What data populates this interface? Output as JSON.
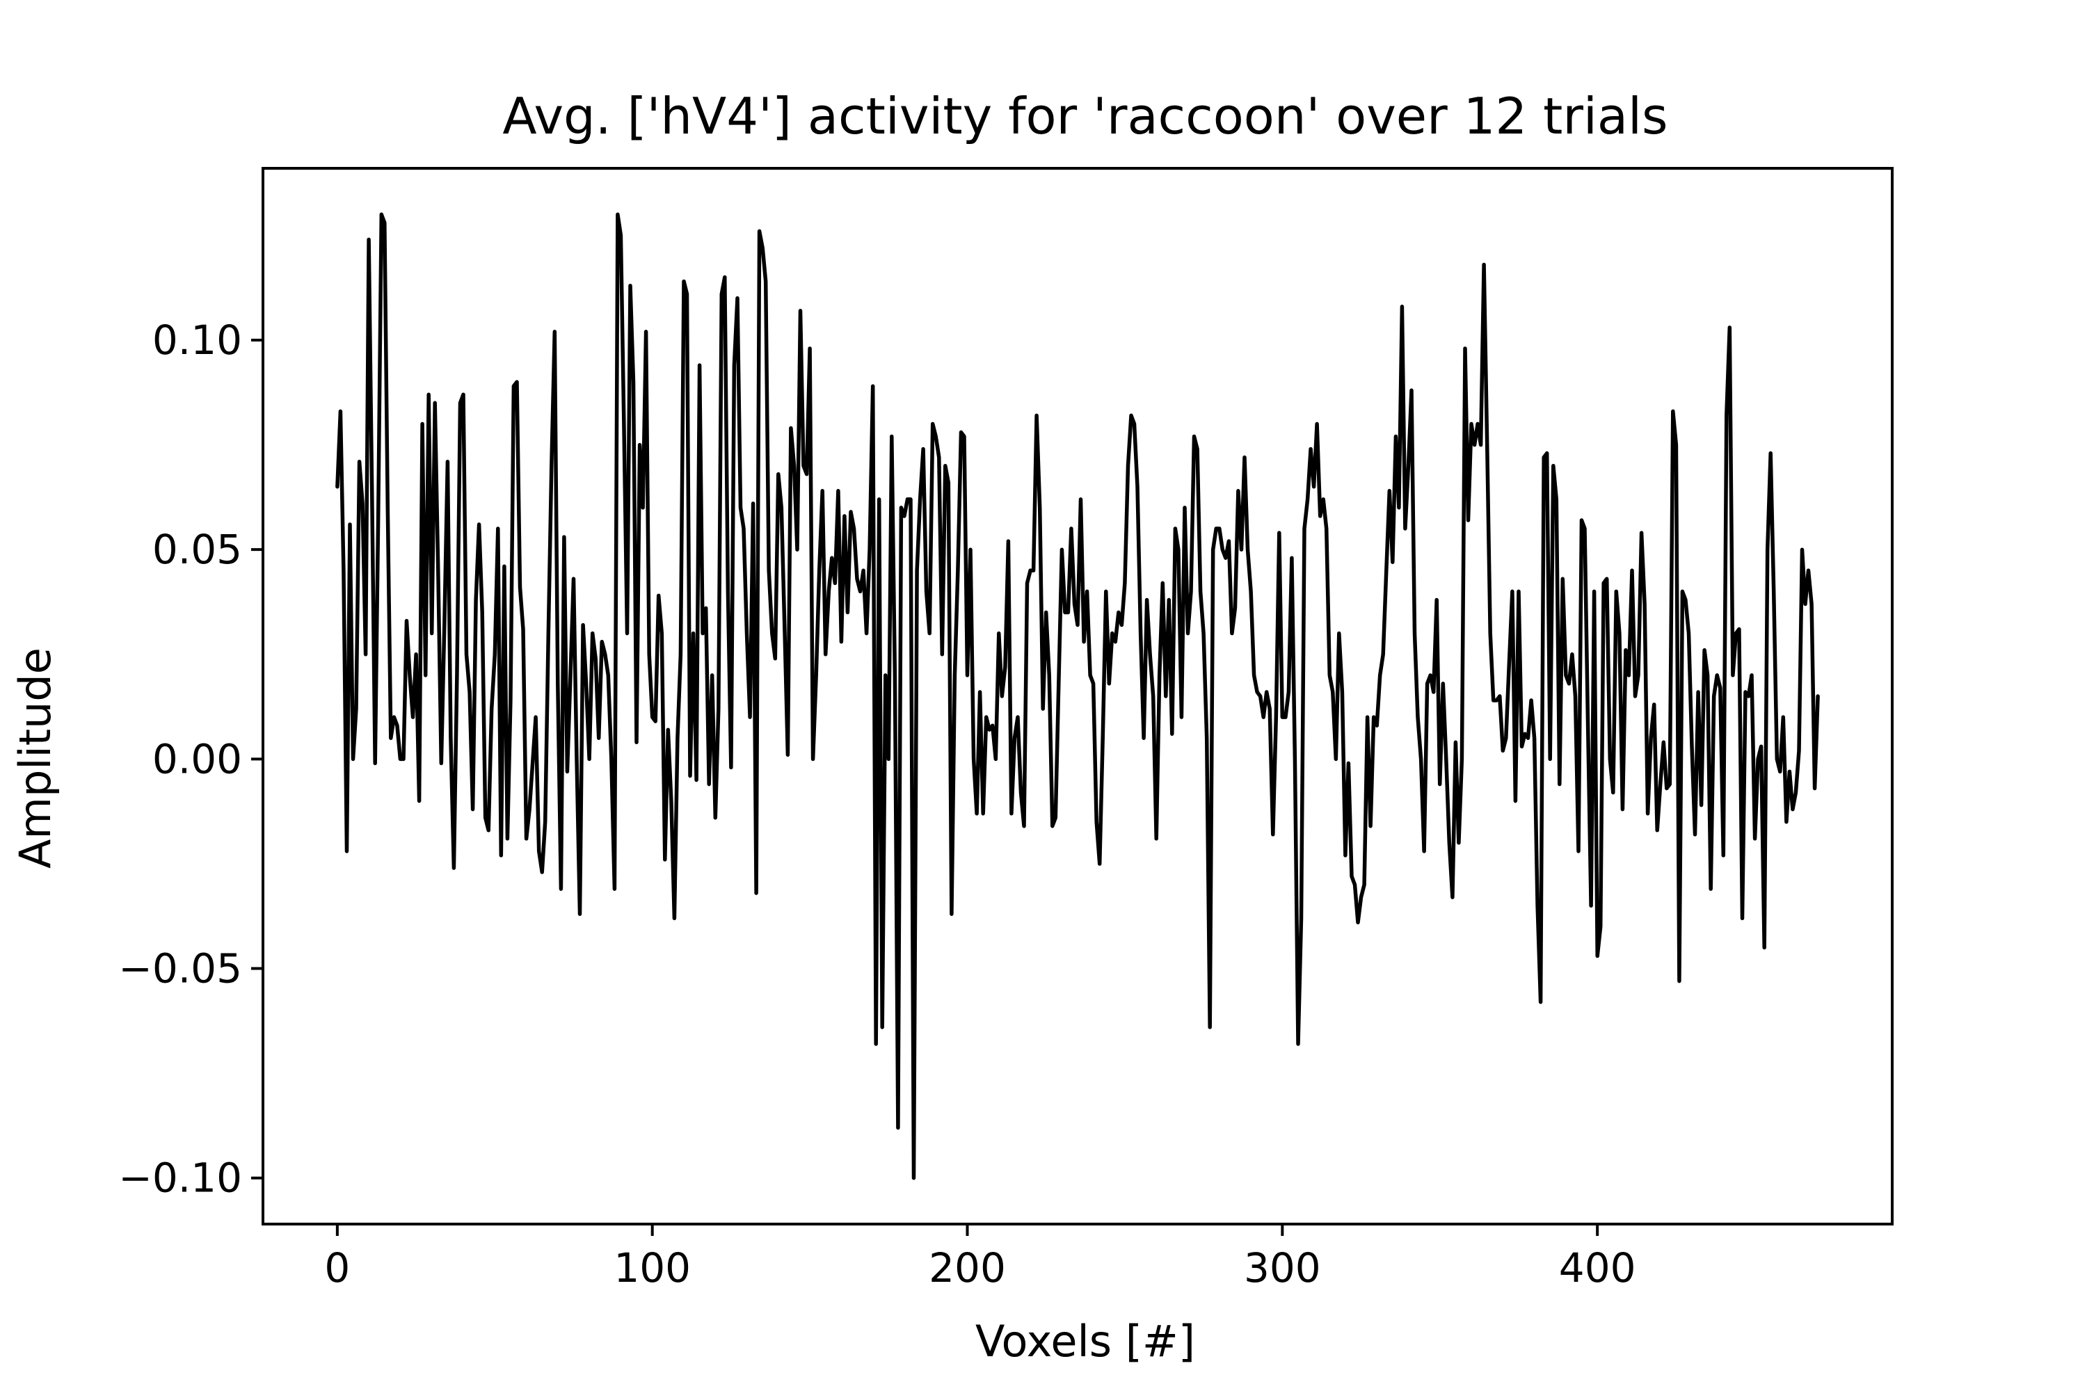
{
  "chart_data": {
    "type": "line",
    "title": "Avg. ['hV4'] activity for 'raccoon' over 12 trials",
    "xlabel": "Voxels [#]",
    "ylabel": "Amplitude",
    "xlim": [
      -23.6,
      493.6
    ],
    "ylim": [
      -0.111,
      0.141
    ],
    "xticks": [
      0,
      100,
      200,
      300,
      400
    ],
    "xtick_labels": [
      "0",
      "100",
      "200",
      "300",
      "400"
    ],
    "yticks": [
      -0.1,
      -0.05,
      0.0,
      0.05,
      0.1
    ],
    "ytick_labels": [
      "−0.10",
      "−0.05",
      "0.00",
      "0.05",
      "0.10"
    ],
    "grid": false,
    "legend": "none",
    "line_color": "#000000",
    "series": [
      {
        "x": [
          0,
          1,
          2,
          3,
          4,
          5,
          6,
          7,
          8,
          9,
          10,
          11,
          12,
          13,
          14,
          15,
          16,
          17,
          18,
          19,
          20,
          21,
          22,
          23,
          24,
          25,
          26,
          27,
          28,
          29,
          30,
          31,
          32,
          33,
          34,
          35,
          36,
          37,
          38,
          39,
          40,
          41,
          42,
          43,
          44,
          45,
          46,
          47,
          48,
          49,
          50,
          51,
          52,
          53,
          54,
          55,
          56,
          57,
          58,
          59,
          60,
          61,
          62,
          63,
          64,
          65,
          66,
          67,
          68,
          69,
          70,
          71,
          72,
          73,
          74,
          75,
          76,
          77,
          78,
          79,
          80,
          81,
          82,
          83,
          84,
          85,
          86,
          87,
          88,
          89,
          90,
          91,
          92,
          93,
          94,
          95,
          96,
          97,
          98,
          99,
          100,
          101,
          102,
          103,
          104,
          105,
          106,
          107,
          108,
          109,
          110,
          111,
          112,
          113,
          114,
          115,
          116,
          117,
          118,
          119,
          120,
          121,
          122,
          123,
          124,
          125,
          126,
          127,
          128,
          129,
          130,
          131,
          132,
          133,
          134,
          135,
          136,
          137,
          138,
          139,
          140,
          141,
          142,
          143,
          144,
          145,
          146,
          147,
          148,
          149,
          150,
          151,
          152,
          153,
          154,
          155,
          156,
          157,
          158,
          159,
          160,
          161,
          162,
          163,
          164,
          165,
          166,
          167,
          168,
          169,
          170,
          171,
          172,
          173,
          174,
          175,
          176,
          177,
          178,
          179,
          180,
          181,
          182,
          183,
          184,
          185,
          186,
          187,
          188,
          189,
          190,
          191,
          192,
          193,
          194,
          195,
          196,
          197,
          198,
          199,
          200,
          201,
          202,
          203,
          204,
          205,
          206,
          207,
          208,
          209,
          210,
          211,
          212,
          213,
          214,
          215,
          216,
          217,
          218,
          219,
          220,
          221,
          222,
          223,
          224,
          225,
          226,
          227,
          228,
          229,
          230,
          231,
          232,
          233,
          234,
          235,
          236,
          237,
          238,
          239,
          240,
          241,
          242,
          243,
          244,
          245,
          246,
          247,
          248,
          249,
          250,
          251,
          252,
          253,
          254,
          255,
          256,
          257,
          258,
          259,
          260,
          261,
          262,
          263,
          264,
          265,
          266,
          267,
          268,
          269,
          270,
          271,
          272,
          273,
          274,
          275,
          276,
          277,
          278,
          279,
          280,
          281,
          282,
          283,
          284,
          285,
          286,
          287,
          288,
          289,
          290,
          291,
          292,
          293,
          294,
          295,
          296,
          297,
          298,
          299,
          300,
          301,
          302,
          303,
          304,
          305,
          306,
          307,
          308,
          309,
          310,
          311,
          312,
          313,
          314,
          315,
          316,
          317,
          318,
          319,
          320,
          321,
          322,
          323,
          324,
          325,
          326,
          327,
          328,
          329,
          330,
          331,
          332,
          333,
          334,
          335,
          336,
          337,
          338,
          339,
          340,
          341,
          342,
          343,
          344,
          345,
          346,
          347,
          348,
          349,
          350,
          351,
          352,
          353,
          354,
          355,
          356,
          357,
          358,
          359,
          360,
          361,
          362,
          363,
          364,
          365,
          366,
          367,
          368,
          369,
          370,
          371,
          372,
          373,
          374,
          375,
          376,
          377,
          378,
          379,
          380,
          381,
          382,
          383,
          384,
          385,
          386,
          387,
          388,
          389,
          390,
          391,
          392,
          393,
          394,
          395,
          396,
          397,
          398,
          399,
          400,
          401,
          402,
          403,
          404,
          405,
          406,
          407,
          408,
          409,
          410,
          411,
          412,
          413,
          414,
          415,
          416,
          417,
          418,
          419,
          420,
          421,
          422,
          423,
          424,
          425,
          426,
          427,
          428,
          429,
          430,
          431,
          432,
          433,
          434,
          435,
          436,
          437,
          438,
          439,
          440,
          441,
          442,
          443,
          444,
          445,
          446,
          447,
          448,
          449,
          450,
          451,
          452,
          453,
          454,
          455,
          456,
          457,
          458,
          459,
          460,
          461,
          462,
          463,
          464,
          465,
          466,
          467,
          468,
          469,
          470
        ],
        "y": [
          0.065,
          0.083,
          0.045,
          -0.022,
          0.056,
          0.0,
          0.012,
          0.071,
          0.061,
          0.025,
          0.124,
          0.064,
          -0.001,
          0.058,
          0.13,
          0.128,
          0.06,
          0.005,
          0.01,
          0.008,
          0.0,
          0.0,
          0.033,
          0.02,
          0.01,
          0.025,
          -0.01,
          0.08,
          0.02,
          0.087,
          0.03,
          0.085,
          0.045,
          -0.001,
          0.032,
          0.071,
          0.005,
          -0.026,
          0.02,
          0.085,
          0.087,
          0.025,
          0.016,
          -0.012,
          0.038,
          0.056,
          0.035,
          -0.014,
          -0.017,
          0.012,
          0.025,
          0.055,
          -0.023,
          0.046,
          -0.019,
          0.014,
          0.089,
          0.09,
          0.041,
          0.031,
          -0.019,
          -0.012,
          -0.001,
          0.01,
          -0.022,
          -0.027,
          -0.015,
          0.03,
          0.07,
          0.102,
          0.018,
          -0.031,
          0.053,
          -0.003,
          0.02,
          0.043,
          0.0,
          -0.037,
          0.032,
          0.018,
          0.0,
          0.03,
          0.024,
          0.005,
          0.028,
          0.025,
          0.02,
          0.0,
          -0.031,
          0.13,
          0.125,
          0.08,
          0.03,
          0.113,
          0.09,
          0.004,
          0.075,
          0.06,
          0.102,
          0.025,
          0.01,
          0.009,
          0.039,
          0.03,
          -0.024,
          0.007,
          -0.01,
          -0.038,
          0.005,
          0.025,
          0.114,
          0.111,
          -0.004,
          0.03,
          -0.005,
          0.094,
          0.03,
          0.036,
          -0.006,
          0.02,
          -0.014,
          0.012,
          0.111,
          0.115,
          0.04,
          -0.002,
          0.094,
          0.11,
          0.06,
          0.055,
          0.03,
          0.01,
          0.061,
          -0.032,
          0.126,
          0.122,
          0.114,
          0.045,
          0.03,
          0.024,
          0.068,
          0.06,
          0.031,
          0.001,
          0.079,
          0.07,
          0.05,
          0.107,
          0.07,
          0.068,
          0.098,
          0.0,
          0.02,
          0.045,
          0.064,
          0.025,
          0.04,
          0.048,
          0.042,
          0.064,
          0.028,
          0.058,
          0.035,
          0.059,
          0.055,
          0.043,
          0.04,
          0.045,
          0.03,
          0.05,
          0.089,
          -0.068,
          0.062,
          -0.064,
          0.02,
          0.0,
          0.077,
          0.02,
          -0.088,
          0.06,
          0.058,
          0.062,
          0.062,
          -0.1,
          0.045,
          0.062,
          0.074,
          0.04,
          0.03,
          0.08,
          0.077,
          0.072,
          0.025,
          0.07,
          0.066,
          -0.037,
          0.02,
          0.045,
          0.078,
          0.077,
          0.02,
          0.05,
          0.0,
          -0.013,
          0.016,
          -0.013,
          0.01,
          0.007,
          0.008,
          0.0,
          0.03,
          0.015,
          0.022,
          0.052,
          -0.013,
          0.005,
          0.01,
          -0.008,
          -0.016,
          0.042,
          0.045,
          0.045,
          0.082,
          0.06,
          0.012,
          0.035,
          0.02,
          -0.016,
          -0.014,
          0.018,
          0.05,
          0.035,
          0.035,
          0.055,
          0.037,
          0.032,
          0.062,
          0.028,
          0.04,
          0.02,
          0.018,
          -0.015,
          -0.025,
          0.005,
          0.04,
          0.018,
          0.03,
          0.028,
          0.035,
          0.032,
          0.042,
          0.07,
          0.082,
          0.08,
          0.065,
          0.03,
          0.005,
          0.038,
          0.025,
          0.015,
          -0.019,
          0.02,
          0.042,
          0.015,
          0.038,
          0.006,
          0.055,
          0.05,
          0.01,
          0.06,
          0.03,
          0.04,
          0.077,
          0.074,
          0.04,
          0.03,
          0.005,
          -0.064,
          0.05,
          0.055,
          0.055,
          0.05,
          0.048,
          0.052,
          0.03,
          0.036,
          0.064,
          0.05,
          0.072,
          0.05,
          0.04,
          0.02,
          0.016,
          0.015,
          0.01,
          0.016,
          0.012,
          -0.018,
          0.01,
          0.054,
          0.01,
          0.01,
          0.016,
          0.048,
          0.0,
          -0.068,
          -0.038,
          0.055,
          0.062,
          0.074,
          0.065,
          0.08,
          0.058,
          0.062,
          0.055,
          0.02,
          0.016,
          0.0,
          0.03,
          0.016,
          -0.023,
          -0.001,
          -0.028,
          -0.03,
          -0.039,
          -0.033,
          -0.03,
          0.01,
          -0.016,
          0.01,
          0.008,
          0.02,
          0.025,
          0.045,
          0.064,
          0.047,
          0.077,
          0.06,
          0.108,
          0.055,
          0.07,
          0.088,
          0.03,
          0.01,
          0.0,
          -0.022,
          0.018,
          0.02,
          0.016,
          0.038,
          -0.006,
          0.018,
          0.0,
          -0.02,
          -0.033,
          0.004,
          -0.02,
          0.0,
          0.098,
          0.057,
          0.08,
          0.075,
          0.08,
          0.075,
          0.118,
          0.075,
          0.03,
          0.014,
          0.014,
          0.015,
          0.002,
          0.005,
          0.023,
          0.04,
          -0.01,
          0.04,
          0.003,
          0.006,
          0.005,
          0.014,
          0.005,
          -0.035,
          -0.058,
          0.072,
          0.073,
          0.0,
          0.07,
          0.062,
          -0.006,
          0.043,
          0.02,
          0.018,
          0.025,
          0.015,
          -0.022,
          0.057,
          0.055,
          0.008,
          -0.035,
          0.04,
          -0.047,
          -0.04,
          0.042,
          0.043,
          0.0,
          -0.008,
          0.04,
          0.03,
          -0.012,
          0.026,
          0.02,
          0.045,
          0.015,
          0.02,
          0.054,
          0.037,
          -0.013,
          0.005,
          0.013,
          -0.017,
          -0.006,
          0.004,
          -0.007,
          -0.006,
          0.083,
          0.075,
          -0.053,
          0.04,
          0.038,
          0.03,
          0.003,
          -0.018,
          0.016,
          -0.011,
          0.026,
          0.02,
          -0.031,
          0.015,
          0.02,
          0.017,
          -0.023,
          0.082,
          0.103,
          0.02,
          0.03,
          0.031,
          -0.038,
          0.016,
          0.015,
          0.02,
          -0.019,
          0.0,
          0.003,
          -0.045,
          0.05,
          0.073,
          0.04,
          0.0,
          -0.003,
          0.01,
          -0.015,
          -0.003,
          -0.012,
          -0.008,
          0.002,
          0.05,
          0.037,
          0.045,
          0.037,
          -0.007,
          0.015
        ]
      }
    ]
  }
}
